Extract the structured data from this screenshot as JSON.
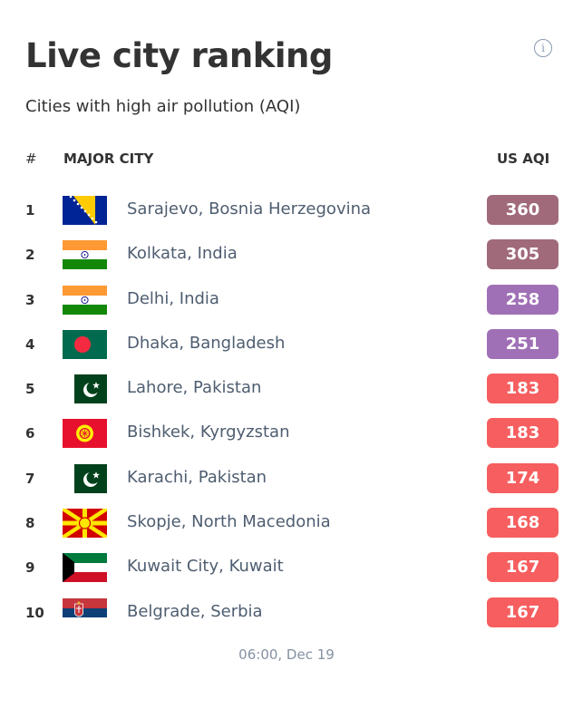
{
  "header": {
    "title": "Live city ranking",
    "subtitle": "Cities with high air pollution (AQI)",
    "info_icon": "info-circle-icon"
  },
  "columns": {
    "rank": "#",
    "city": "MAJOR CITY",
    "aqi": "US AQI"
  },
  "colors": {
    "hazardous": "#a06a7b",
    "very_unhealthy": "#a070b6",
    "unhealthy": "#f65e5f"
  },
  "rows": [
    {
      "rank": "1",
      "city": "Sarajevo, Bosnia Herzegovina",
      "aqi": "360",
      "flag": "bosnia-herzegovina-flag-icon",
      "level": "hazardous"
    },
    {
      "rank": "2",
      "city": "Kolkata, India",
      "aqi": "305",
      "flag": "india-flag-icon",
      "level": "hazardous"
    },
    {
      "rank": "3",
      "city": "Delhi, India",
      "aqi": "258",
      "flag": "india-flag-icon",
      "level": "very_unhealthy"
    },
    {
      "rank": "4",
      "city": "Dhaka, Bangladesh",
      "aqi": "251",
      "flag": "bangladesh-flag-icon",
      "level": "very_unhealthy"
    },
    {
      "rank": "5",
      "city": "Lahore, Pakistan",
      "aqi": "183",
      "flag": "pakistan-flag-icon",
      "level": "unhealthy"
    },
    {
      "rank": "6",
      "city": "Bishkek, Kyrgyzstan",
      "aqi": "183",
      "flag": "kyrgyzstan-flag-icon",
      "level": "unhealthy"
    },
    {
      "rank": "7",
      "city": "Karachi, Pakistan",
      "aqi": "174",
      "flag": "pakistan-flag-icon",
      "level": "unhealthy"
    },
    {
      "rank": "8",
      "city": "Skopje, North Macedonia",
      "aqi": "168",
      "flag": "north-macedonia-flag-icon",
      "level": "unhealthy"
    },
    {
      "rank": "9",
      "city": "Kuwait City, Kuwait",
      "aqi": "167",
      "flag": "kuwait-flag-icon",
      "level": "unhealthy"
    },
    {
      "rank": "10",
      "city": "Belgrade, Serbia",
      "aqi": "167",
      "flag": "serbia-flag-icon",
      "level": "unhealthy"
    }
  ],
  "footer": {
    "timestamp": "06:00, Dec 19"
  }
}
